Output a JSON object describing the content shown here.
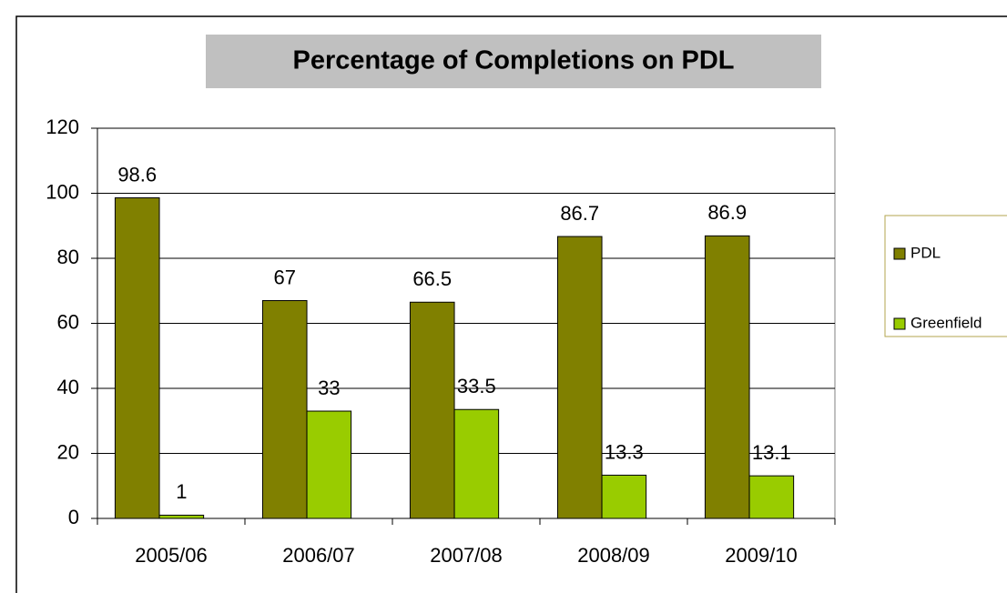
{
  "chart_data": {
    "type": "bar",
    "title": "Percentage of Completions on PDL",
    "categories": [
      "2005/06",
      "2006/07",
      "2007/08",
      "2008/09",
      "2009/10"
    ],
    "series": [
      {
        "name": "PDL",
        "color": "#808000",
        "values": [
          98.6,
          67,
          66.5,
          86.7,
          86.9
        ]
      },
      {
        "name": "Greenfield",
        "color": "#99cc00",
        "values": [
          1,
          33,
          33.5,
          13.3,
          13.1
        ]
      }
    ],
    "ylim": [
      0,
      120
    ],
    "yticks": [
      0,
      20,
      40,
      60,
      80,
      100,
      120
    ],
    "grid": true,
    "legend": "right"
  }
}
